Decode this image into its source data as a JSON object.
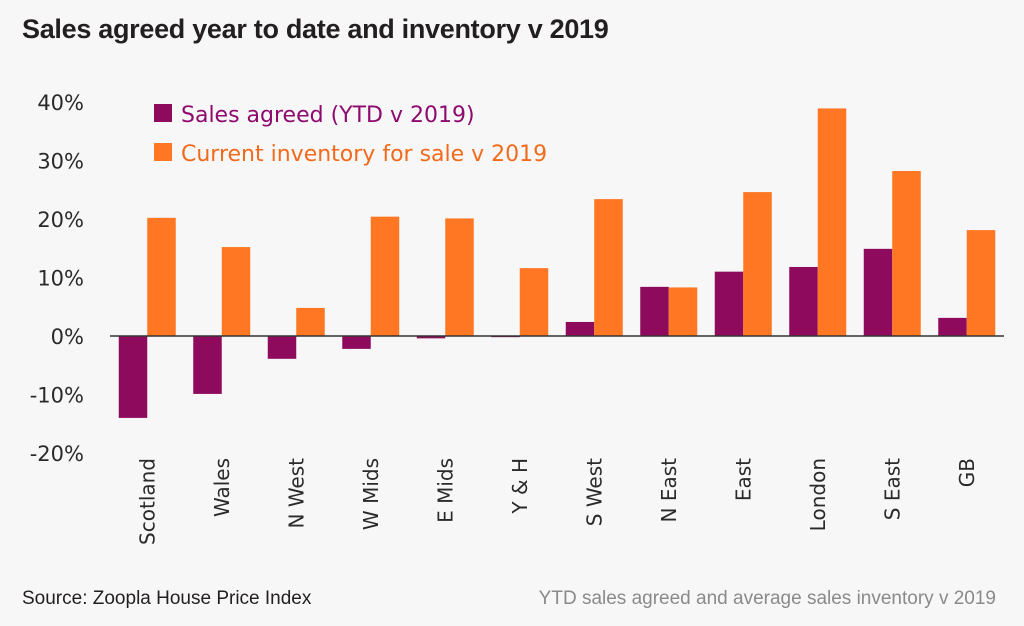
{
  "chart_data": {
    "type": "bar",
    "title": "Sales agreed year to date and inventory v 2019",
    "xlabel": "",
    "ylabel": "",
    "ylim": [
      -20,
      40
    ],
    "yticks": [
      40,
      30,
      20,
      10,
      0,
      -10,
      -20
    ],
    "ytick_labels": [
      "40%",
      "30%",
      "20%",
      "10%",
      "0%",
      "-10%",
      "-20%"
    ],
    "grid": false,
    "legend_position": "top-left",
    "categories": [
      "Scotland",
      "Wales",
      "N West",
      "W Mids",
      "E Mids",
      "Y & H",
      "S West",
      "N East",
      "East",
      "London",
      "S East",
      "GB"
    ],
    "series": [
      {
        "name": "Sales agreed (YTD v 2019)",
        "color": "#8e0a5c",
        "values": [
          -14.0,
          -9.9,
          -3.9,
          -2.2,
          -0.4,
          -0.2,
          2.4,
          8.4,
          11.0,
          11.8,
          14.9,
          3.1
        ]
      },
      {
        "name": "Current inventory for sale v 2019",
        "color": "#ff7722",
        "values": [
          20.2,
          15.2,
          4.8,
          20.4,
          20.1,
          11.6,
          23.4,
          8.3,
          24.6,
          38.9,
          28.2,
          18.1
        ]
      }
    ],
    "source": "Source: Zoopla House Price Index",
    "note": "YTD sales agreed  and average sales inventory v 2019"
  },
  "colors": {
    "background": "#f7f7f7",
    "axis": "#333333",
    "legend_text_purple": "#8e0a6e",
    "legend_text_orange": "#f26a1b"
  }
}
